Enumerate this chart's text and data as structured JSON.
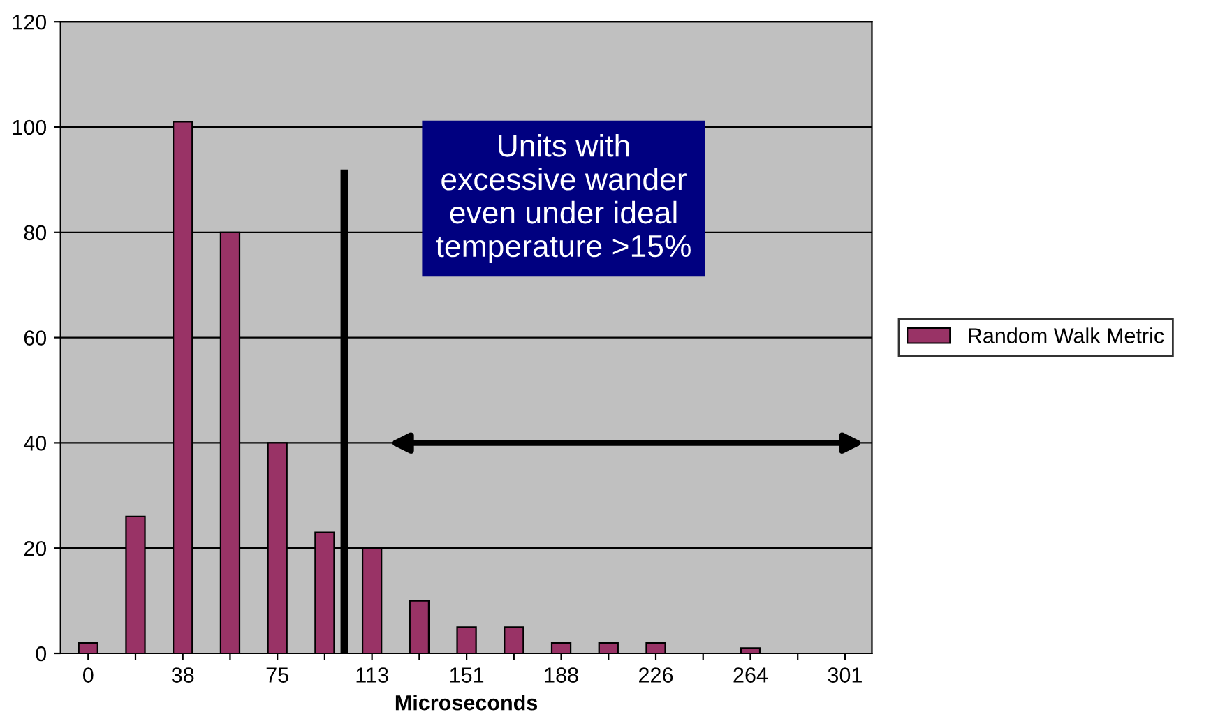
{
  "chart_data": {
    "type": "bar",
    "xlabel": "Microseconds",
    "x": [
      0,
      18.83,
      37.66,
      56.49,
      75.32,
      94.15,
      112.98,
      131.81,
      150.64,
      169.47,
      188.3,
      207.13,
      225.96,
      244.79,
      263.62,
      282.45,
      301.28
    ],
    "series": [
      {
        "name": "Random Walk Metric",
        "color": "#993366",
        "values": [
          2,
          26,
          101,
          80,
          40,
          23,
          20,
          10,
          5,
          5,
          2,
          2,
          2,
          0,
          1,
          0,
          0
        ]
      }
    ],
    "xlim": [
      -11,
      312
    ],
    "xticks": [
      {
        "value": 0,
        "label": "0"
      },
      {
        "value": 18.83,
        "label": null
      },
      {
        "value": 37.66,
        "label": "38"
      },
      {
        "value": 56.49,
        "label": null
      },
      {
        "value": 75.32,
        "label": "75"
      },
      {
        "value": 94.15,
        "label": null
      },
      {
        "value": 112.98,
        "label": "113"
      },
      {
        "value": 131.81,
        "label": null
      },
      {
        "value": 150.64,
        "label": "151"
      },
      {
        "value": 169.47,
        "label": null
      },
      {
        "value": 188.3,
        "label": "188"
      },
      {
        "value": 207.13,
        "label": null
      },
      {
        "value": 225.96,
        "label": "226"
      },
      {
        "value": 244.79,
        "label": null
      },
      {
        "value": 263.62,
        "label": "264"
      },
      {
        "value": 282.45,
        "label": null
      },
      {
        "value": 301.28,
        "label": "301"
      }
    ],
    "ylim": [
      0,
      120
    ],
    "yticks": [
      0,
      20,
      40,
      60,
      80,
      100,
      120
    ],
    "grid": "y",
    "legend": "right",
    "ref_lines": [
      {
        "axis": "x",
        "value": 102,
        "color": "#000000"
      }
    ],
    "annotations": [
      "Units with\nexcessive wander\neven under ideal\ntemperature >15%"
    ]
  }
}
